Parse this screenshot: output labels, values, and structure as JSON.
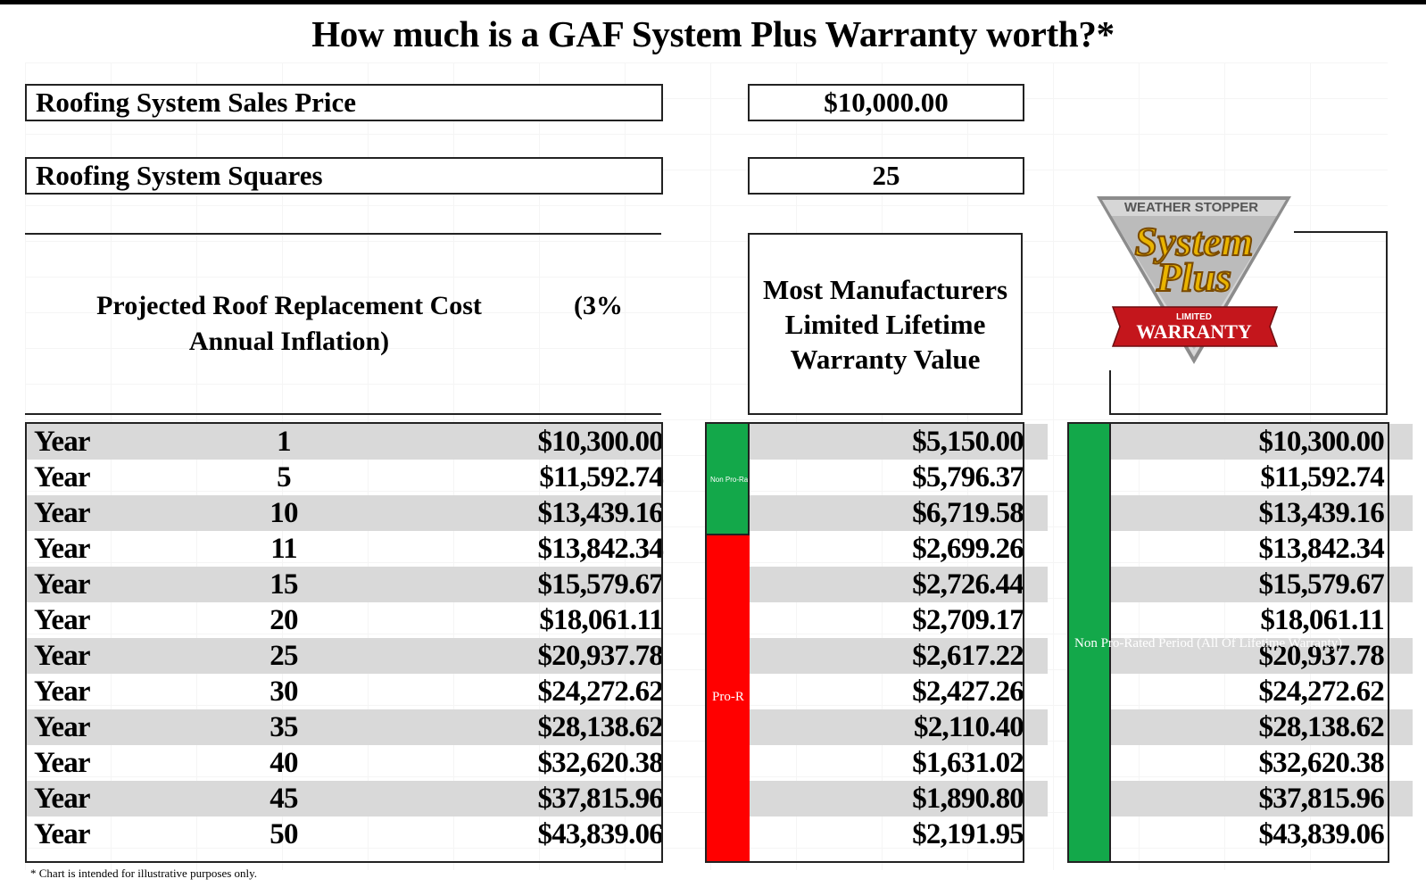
{
  "title": "How much is a GAF System Plus Warranty worth?*",
  "inputs": {
    "sales_price_label": "Roofing System Sales Price",
    "sales_price_value": "$10,000.00",
    "squares_label": "Roofing System Squares",
    "squares_value": "25"
  },
  "headers": {
    "projected_line1": "Projected Roof Replacement Cost",
    "projected_line2": "Annual Inflation)",
    "projected_pct": "(3%",
    "manufacturers_line1": "Most Manufacturers",
    "manufacturers_line2": "Limited Lifetime",
    "manufacturers_line3": "Warranty Value"
  },
  "logo": {
    "top_text": "WEATHER STOPPER",
    "main_text_1": "System",
    "main_text_2": "Plus",
    "ribbon_small": "LIMITED",
    "ribbon_text": "WARRANTY"
  },
  "bar_labels": {
    "non_prorated": "Non Pro-Rated",
    "prorated": "Pro-R",
    "gaf_non_prorated": "Non Pro-Rated Period (All Of Lifetime Warranty)"
  },
  "rows": [
    {
      "label": "Year",
      "year": "1",
      "cost": "$10,300.00",
      "mfr": "$5,150.00",
      "gaf": "$10,300.00"
    },
    {
      "label": "Year",
      "year": "5",
      "cost": "$11,592.74",
      "mfr": "$5,796.37",
      "gaf": "$11,592.74"
    },
    {
      "label": "Year",
      "year": "10",
      "cost": "$13,439.16",
      "mfr": "$6,719.58",
      "gaf": "$13,439.16"
    },
    {
      "label": "Year",
      "year": "11",
      "cost": "$13,842.34",
      "mfr": "$2,699.26",
      "gaf": "$13,842.34"
    },
    {
      "label": "Year",
      "year": "15",
      "cost": "$15,579.67",
      "mfr": "$2,726.44",
      "gaf": "$15,579.67"
    },
    {
      "label": "Year",
      "year": "20",
      "cost": "$18,061.11",
      "mfr": "$2,709.17",
      "gaf": "$18,061.11"
    },
    {
      "label": "Year",
      "year": "25",
      "cost": "$20,937.78",
      "mfr": "$2,617.22",
      "gaf": "$20,937.78"
    },
    {
      "label": "Year",
      "year": "30",
      "cost": "$24,272.62",
      "mfr": "$2,427.26",
      "gaf": "$24,272.62"
    },
    {
      "label": "Year",
      "year": "35",
      "cost": "$28,138.62",
      "mfr": "$2,110.40",
      "gaf": "$28,138.62"
    },
    {
      "label": "Year",
      "year": "40",
      "cost": "$32,620.38",
      "mfr": "$1,631.02",
      "gaf": "$32,620.38"
    },
    {
      "label": "Year",
      "year": "45",
      "cost": "$37,815.96",
      "mfr": "$1,890.80",
      "gaf": "$37,815.96"
    },
    {
      "label": "Year",
      "year": "50",
      "cost": "$43,839.06",
      "mfr": "$2,191.95",
      "gaf": "$43,839.06"
    }
  ],
  "footnote": "* Chart is intended for illustrative purposes only.",
  "colors": {
    "green": "#13a84a",
    "red": "#ff0000",
    "shade": "#d9d9d9"
  }
}
